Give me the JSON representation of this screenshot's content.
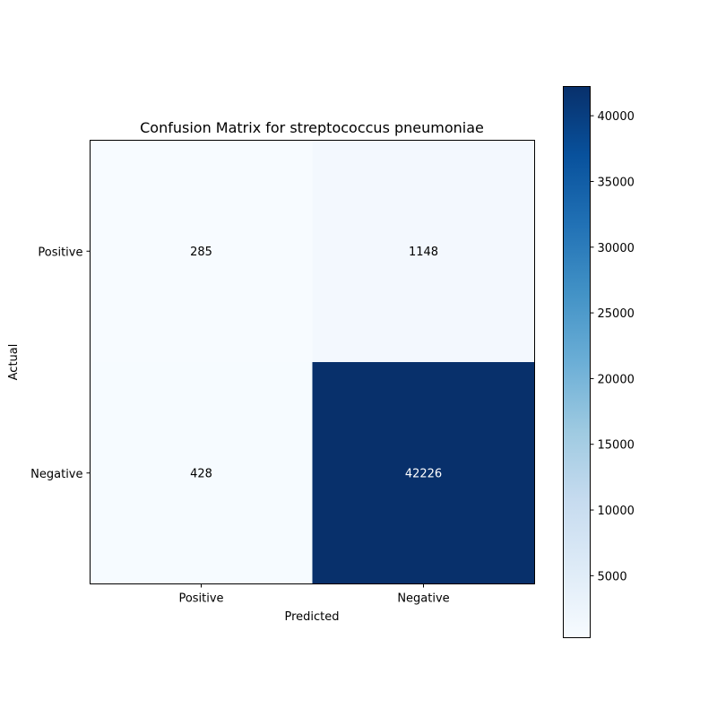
{
  "chart_data": {
    "type": "heatmap",
    "title": "Confusion Matrix for streptococcus pneumoniae",
    "xlabel": "Predicted",
    "ylabel": "Actual",
    "x_categories": [
      "Positive",
      "Negative"
    ],
    "y_categories": [
      "Positive",
      "Negative"
    ],
    "matrix": [
      [
        285,
        1148
      ],
      [
        428,
        42226
      ]
    ],
    "colormap": "Blues",
    "colorbar": {
      "min": 285,
      "max": 42226,
      "ticks": [
        5000,
        10000,
        15000,
        20000,
        25000,
        30000,
        35000,
        40000
      ]
    },
    "grid": false
  }
}
